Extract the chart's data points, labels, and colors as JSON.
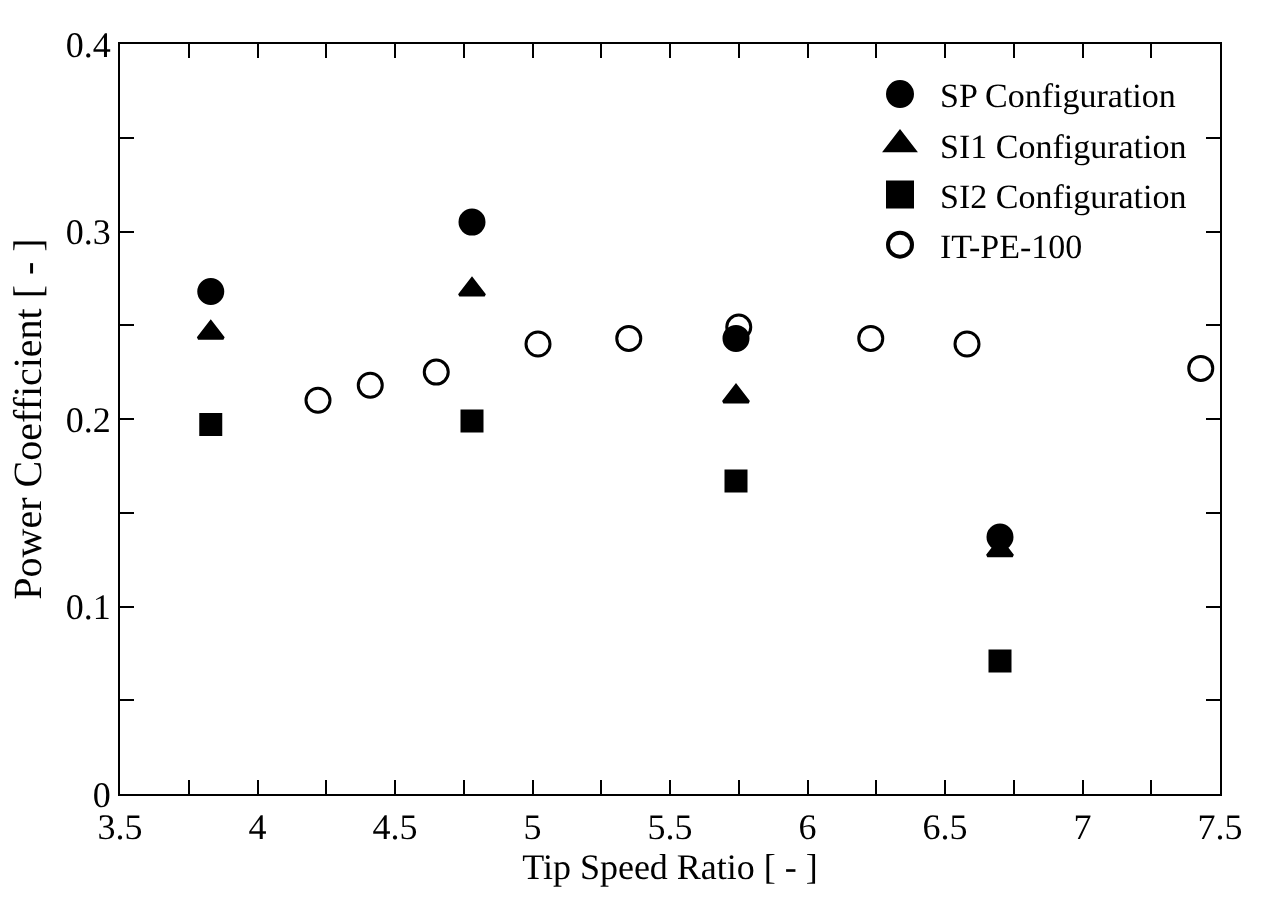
{
  "chart_data": {
    "type": "scatter",
    "xlabel": "Tip Speed Ratio [ - ]",
    "ylabel": "Power Coefficient [ - ]",
    "xlim": [
      3.5,
      7.5
    ],
    "ylim": [
      0,
      0.4
    ],
    "xticks": [
      3.5,
      {
        "value": 3.75,
        "label": null
      },
      4,
      {
        "value": 4.25,
        "label": null
      },
      4.5,
      {
        "value": 4.75,
        "label": null
      },
      5,
      {
        "value": 5.25,
        "label": null
      },
      5.5,
      {
        "value": 5.75,
        "label": null
      },
      6,
      {
        "value": 6.25,
        "label": null
      },
      6.5,
      {
        "value": 6.75,
        "label": null
      },
      7,
      {
        "value": 7.25,
        "label": null
      },
      7.5
    ],
    "yticks": [
      0,
      {
        "value": 0.05,
        "label": null
      },
      0.1,
      {
        "value": 0.15,
        "label": null
      },
      0.2,
      {
        "value": 0.25,
        "label": null
      },
      0.3,
      {
        "value": 0.35,
        "label": null
      },
      0.4
    ],
    "legend": "top right",
    "series": [
      {
        "name": "SP Configuration",
        "color": "#000000",
        "marker": "circle",
        "x": [
          3.83,
          4.78,
          5.74,
          6.7
        ],
        "values": [
          0.268,
          0.305,
          0.243,
          0.137
        ]
      },
      {
        "name": "SI1 Configuration",
        "color": "#000000",
        "marker": "triangle",
        "x": [
          3.83,
          4.78,
          5.74,
          6.7
        ],
        "values": [
          0.246,
          0.269,
          0.212,
          0.13
        ]
      },
      {
        "name": "SI2 Configuration",
        "color": "#000000",
        "marker": "square",
        "x": [
          3.83,
          4.78,
          5.74,
          6.7
        ],
        "values": [
          0.197,
          0.199,
          0.167,
          0.071
        ]
      },
      {
        "name": "IT-PE-100",
        "color": "#000000",
        "marker": "open circle",
        "x": [
          4.22,
          4.41,
          4.65,
          5.02,
          5.35,
          5.75,
          6.23,
          6.58,
          7.43
        ],
        "values": [
          0.21,
          0.218,
          0.225,
          0.24,
          0.243,
          0.249,
          0.243,
          0.24,
          0.227
        ]
      }
    ]
  }
}
